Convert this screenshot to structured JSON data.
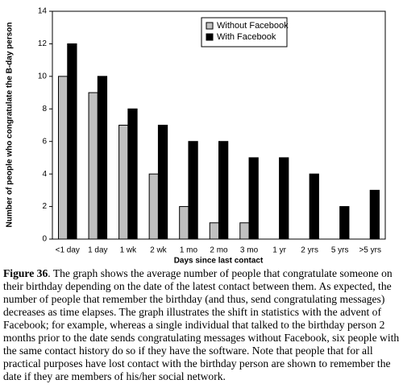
{
  "chart_data": {
    "type": "bar",
    "y_label": "Number of people who congratulate the B-day person",
    "x_label": "Days since last contact",
    "categories": [
      "<1 day",
      "1 day",
      "1 wk",
      "2 wk",
      "1 mo",
      "2 mo",
      "3 mo",
      "1 yr",
      "2 yrs",
      "5 yrs",
      ">5 yrs"
    ],
    "series": [
      {
        "name": "Without Facebook",
        "color": "#c0c0c0",
        "values": [
          10,
          9,
          7,
          4,
          2,
          1,
          1,
          0,
          0,
          0,
          0
        ]
      },
      {
        "name": "With Facebook",
        "color": "#000000",
        "values": [
          12,
          10,
          8,
          7,
          6,
          6,
          5,
          5,
          4,
          2,
          3
        ]
      }
    ],
    "ylim": [
      0,
      14
    ],
    "yticks": [
      0,
      2,
      4,
      6,
      8,
      10,
      12,
      14
    ],
    "grid": false,
    "legend": "top-right"
  },
  "caption": {
    "label": "Figure 36",
    "text": ". The graph shows the average number of people that congratulate someone on their birthday depending on the date of the latest contact between them. As expected, the number of people that remember the birthday (and thus, send congratulating messages) decreases as time elapses. The graph illustrates the shift in statistics with the advent of Facebook; for example, whereas a single individual that talked to the birthday person 2 months prior to the date sends congratulating messages without Facebook, six people with the same contact history do so if they have the software. Note that people that for all practical purposes have lost contact with the birthday person are shown to remember the date if they are members of his/her social network."
  }
}
